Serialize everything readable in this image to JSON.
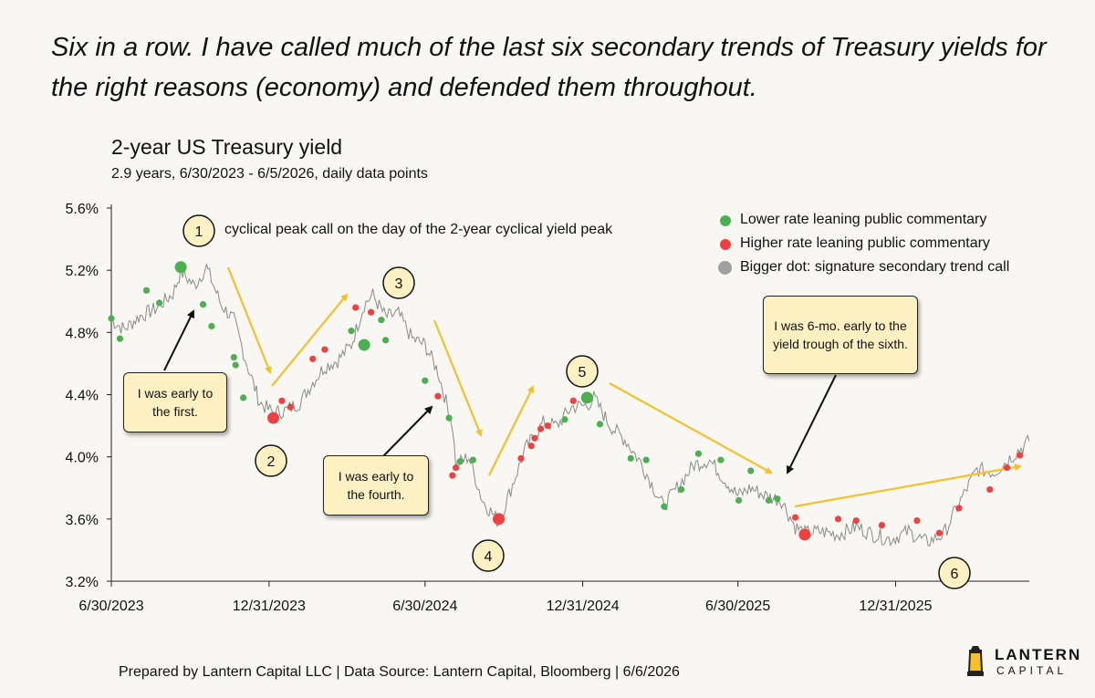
{
  "headline": "Six in a row. I have called much of the last six secondary trends of Treasury yields for the right reasons (economy) and defended them throughout.",
  "footer": "Prepared by Lantern Capital LLC | Data Source: Lantern Capital, Bloomberg | 6/6/2026",
  "logo": {
    "name": "LANTERN",
    "sub": "CAPITAL"
  },
  "peak_note": "cyclical peak call on the day of the 2-year cyclical yield peak",
  "legend": [
    {
      "label": "Lower rate leaning  public commentary",
      "color": "#4caf50"
    },
    {
      "label": "Higher rate leaning  public commentary",
      "color": "#f04040"
    },
    {
      "label": "Bigger dot: signature secondary trend call",
      "color": "#a0a0a0"
    }
  ],
  "callouts": [
    {
      "id": "first",
      "text": "I was early to the first."
    },
    {
      "id": "fourth",
      "text": "I was early to the fourth."
    },
    {
      "id": "sixth",
      "text": "I was 6-mo. early to the yield trough of the sixth."
    }
  ],
  "colors": {
    "arrow": "#f5c02a",
    "line": "#8a8a8a",
    "green": "#4caf50",
    "red": "#f04040",
    "callout_bg": "#fdf1c4"
  },
  "chart_data": {
    "type": "line",
    "title": "2-year US Treasury yield",
    "subtitle": "2.9 years, 6/30/2023 - 6/5/2026, daily data points",
    "x_ticks": [
      "6/30/2023",
      "12/31/2023",
      "6/30/2024",
      "12/31/2024",
      "6/30/2025",
      "12/31/2025"
    ],
    "y_ticks": [
      "3.2%",
      "3.6%",
      "4.0%",
      "4.4%",
      "4.8%",
      "5.2%",
      "5.6%"
    ],
    "ylim": [
      3.2,
      5.6
    ],
    "xlim": [
      "2023-06-30",
      "2026-06-05"
    ],
    "grid": false,
    "legend_position": "top-right",
    "series": [
      {
        "x": [
          "2023-06-30",
          "2023-07-15",
          "2023-08-01",
          "2023-08-20",
          "2023-09-10",
          "2023-09-19",
          "2023-10-05",
          "2023-10-19",
          "2023-11-05",
          "2023-11-20",
          "2023-12-05",
          "2023-12-20",
          "2024-01-05",
          "2024-01-20",
          "2024-02-05",
          "2024-02-20",
          "2024-03-05",
          "2024-03-20",
          "2024-04-05",
          "2024-04-20",
          "2024-04-30",
          "2024-05-15",
          "2024-05-30",
          "2024-06-15",
          "2024-06-30",
          "2024-07-15",
          "2024-08-01",
          "2024-08-05",
          "2024-08-20",
          "2024-09-05",
          "2024-09-24",
          "2024-10-10",
          "2024-10-25",
          "2024-11-15",
          "2024-12-01",
          "2024-12-18",
          "2025-01-05",
          "2025-01-13",
          "2025-02-01",
          "2025-02-20",
          "2025-03-10",
          "2025-04-04",
          "2025-04-20",
          "2025-05-10",
          "2025-05-28",
          "2025-06-15",
          "2025-06-30",
          "2025-07-15",
          "2025-08-01",
          "2025-08-20",
          "2025-09-05",
          "2025-09-16",
          "2025-10-05",
          "2025-10-25",
          "2025-11-15",
          "2025-12-05",
          "2025-12-25",
          "2026-01-15",
          "2026-02-05",
          "2026-02-25",
          "2026-03-15",
          "2026-04-05",
          "2026-04-25",
          "2026-05-15",
          "2026-06-05"
        ],
        "values": [
          4.88,
          4.82,
          4.9,
          4.95,
          5.05,
          5.19,
          5.1,
          5.22,
          4.98,
          4.88,
          4.6,
          4.35,
          4.28,
          4.3,
          4.35,
          4.48,
          4.58,
          4.62,
          4.72,
          4.98,
          5.04,
          4.9,
          4.92,
          4.76,
          4.72,
          4.55,
          4.2,
          3.95,
          4.0,
          3.72,
          3.58,
          3.82,
          4.05,
          4.22,
          4.2,
          4.32,
          4.33,
          4.38,
          4.2,
          4.1,
          3.95,
          3.68,
          3.8,
          3.95,
          3.98,
          3.85,
          3.75,
          3.8,
          3.75,
          3.72,
          3.55,
          3.51,
          3.52,
          3.5,
          3.55,
          3.5,
          3.47,
          3.52,
          3.45,
          3.5,
          3.7,
          3.92,
          3.9,
          4.0,
          4.1
        ]
      }
    ],
    "dots_green": [
      {
        "x": "2023-06-30",
        "y": 4.89
      },
      {
        "x": "2023-07-10",
        "y": 4.76
      },
      {
        "x": "2023-08-10",
        "y": 5.07
      },
      {
        "x": "2023-08-25",
        "y": 4.99
      },
      {
        "x": "2023-09-19",
        "y": 5.22,
        "big": true
      },
      {
        "x": "2023-10-15",
        "y": 4.98
      },
      {
        "x": "2023-10-25",
        "y": 4.84
      },
      {
        "x": "2023-11-20",
        "y": 4.64
      },
      {
        "x": "2023-11-22",
        "y": 4.59
      },
      {
        "x": "2023-12-01",
        "y": 4.38
      },
      {
        "x": "2024-04-05",
        "y": 4.81
      },
      {
        "x": "2024-04-20",
        "y": 4.72,
        "big": true
      },
      {
        "x": "2024-05-10",
        "y": 4.88
      },
      {
        "x": "2024-05-15",
        "y": 4.75
      },
      {
        "x": "2024-06-30",
        "y": 4.49
      },
      {
        "x": "2024-07-28",
        "y": 4.25
      },
      {
        "x": "2024-08-10",
        "y": 3.97
      },
      {
        "x": "2024-08-25",
        "y": 3.98
      },
      {
        "x": "2024-12-10",
        "y": 4.24
      },
      {
        "x": "2025-01-05",
        "y": 4.38,
        "big": true
      },
      {
        "x": "2025-01-20",
        "y": 4.21
      },
      {
        "x": "2025-02-25",
        "y": 3.99
      },
      {
        "x": "2025-03-15",
        "y": 3.98
      },
      {
        "x": "2025-04-05",
        "y": 3.68
      },
      {
        "x": "2025-04-25",
        "y": 3.79
      },
      {
        "x": "2025-05-15",
        "y": 4.02
      },
      {
        "x": "2025-06-10",
        "y": 3.98
      },
      {
        "x": "2025-07-01",
        "y": 3.72
      },
      {
        "x": "2025-07-15",
        "y": 3.91
      },
      {
        "x": "2025-08-05",
        "y": 3.72
      },
      {
        "x": "2025-08-15",
        "y": 3.73
      }
    ],
    "dots_red": [
      {
        "x": "2024-01-05",
        "y": 4.25,
        "big": true
      },
      {
        "x": "2024-01-15",
        "y": 4.36
      },
      {
        "x": "2024-01-25",
        "y": 4.32
      },
      {
        "x": "2024-02-20",
        "y": 4.63
      },
      {
        "x": "2024-03-05",
        "y": 4.69
      },
      {
        "x": "2024-04-10",
        "y": 4.96
      },
      {
        "x": "2024-04-28",
        "y": 4.93
      },
      {
        "x": "2024-07-15",
        "y": 4.39
      },
      {
        "x": "2024-08-01",
        "y": 3.88
      },
      {
        "x": "2024-08-05",
        "y": 3.93
      },
      {
        "x": "2024-09-24",
        "y": 3.6,
        "big": true
      },
      {
        "x": "2024-10-20",
        "y": 3.99
      },
      {
        "x": "2024-11-01",
        "y": 4.07
      },
      {
        "x": "2024-11-05",
        "y": 4.12
      },
      {
        "x": "2024-11-12",
        "y": 4.18
      },
      {
        "x": "2024-11-20",
        "y": 4.2
      },
      {
        "x": "2024-12-20",
        "y": 4.36
      },
      {
        "x": "2025-09-05",
        "y": 3.61
      },
      {
        "x": "2025-09-16",
        "y": 3.5,
        "big": true
      },
      {
        "x": "2025-10-25",
        "y": 3.6
      },
      {
        "x": "2025-11-15",
        "y": 3.59
      },
      {
        "x": "2025-12-15",
        "y": 3.56
      },
      {
        "x": "2026-01-25",
        "y": 3.59
      },
      {
        "x": "2026-02-20",
        "y": 3.51
      },
      {
        "x": "2026-03-15",
        "y": 3.67
      },
      {
        "x": "2026-04-20",
        "y": 3.79
      },
      {
        "x": "2026-05-10",
        "y": 3.93
      },
      {
        "x": "2026-05-25",
        "y": 4.01
      }
    ],
    "trend_numbers": [
      "1",
      "2",
      "3",
      "4",
      "5",
      "6"
    ]
  }
}
